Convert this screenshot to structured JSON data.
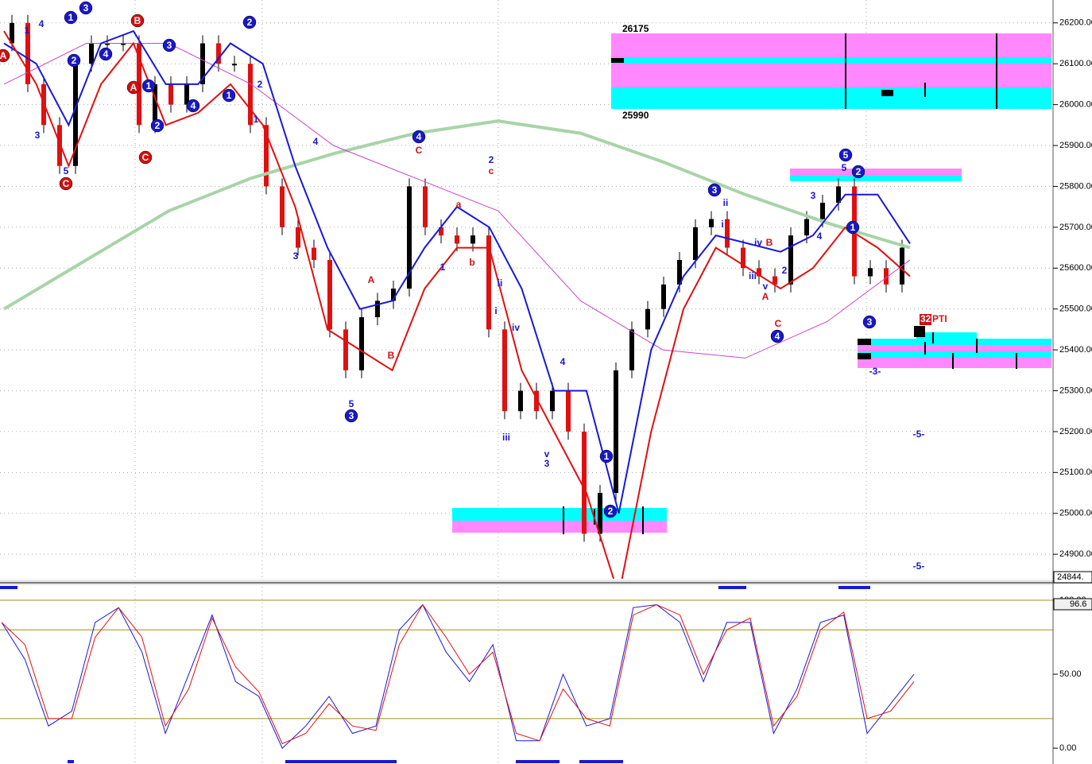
{
  "chart_data": [
    {
      "type": "line",
      "ylim": [
        24840,
        26256
      ],
      "yticks": [
        {
          "value": 24900,
          "label": "24900.00"
        },
        {
          "value": 25000,
          "label": "25000.00"
        },
        {
          "value": 25100,
          "label": "25100.00"
        },
        {
          "value": 25200,
          "label": "25200.00"
        },
        {
          "value": 25300,
          "label": "25300.00"
        },
        {
          "value": 25400,
          "label": "25400.00"
        },
        {
          "value": 25500,
          "label": "25500.00"
        },
        {
          "value": 25600,
          "label": "25600.00"
        },
        {
          "value": 25700,
          "label": "25700.00"
        },
        {
          "value": 25800,
          "label": "25800.00"
        },
        {
          "value": 25900,
          "label": "25900.00"
        },
        {
          "value": 26000,
          "label": "26000.00"
        },
        {
          "value": 26100,
          "label": "26100.00"
        },
        {
          "value": 26200,
          "label": "26200.00"
        }
      ],
      "grid": true,
      "low_label": "24844.",
      "zone_labels": [
        26175,
        25990
      ],
      "pti_count": 32,
      "pti_label": "PTI",
      "series": [
        {
          "style": "bars",
          "color": "#000000",
          "down_color": "#e01010",
          "values": [
            26150,
            26200,
            26050,
            25950,
            25850,
            26100,
            26150,
            26150,
            26150,
            25950,
            26050,
            26000,
            26050,
            26150,
            26100,
            26100,
            25950,
            25800,
            25700,
            25650,
            25620,
            25450,
            25350,
            25480,
            25520,
            25550,
            25800,
            25700,
            25680,
            25660,
            25680,
            25450,
            25250,
            25300,
            25250,
            25300,
            25200,
            24950,
            25050,
            25350,
            25450,
            25500,
            25560,
            25620,
            25700,
            25720,
            25650,
            25600,
            25580,
            25560,
            25680,
            25720,
            25760,
            25800,
            25580,
            25600,
            25560,
            25650
          ]
        },
        {
          "style": "line",
          "color": "#a8d4a8",
          "values": [
            25500,
            25620,
            25740,
            25820,
            25880,
            25930,
            25960,
            25930,
            25860,
            25780,
            25710,
            25650
          ]
        },
        {
          "style": "line",
          "color": "#cc44cc",
          "values": [
            26050,
            26150,
            26150,
            26050,
            25900,
            25820,
            25740,
            25520,
            25400,
            25380,
            25470,
            25620
          ]
        },
        {
          "style": "line",
          "color": "#1818d8",
          "values": [
            26150,
            26100,
            25950,
            26150,
            26180,
            26050,
            26050,
            26150,
            26100,
            25850,
            25650,
            25500,
            25520,
            25650,
            25750,
            25700,
            25550,
            25300,
            25300,
            25000,
            25400,
            25580,
            25680,
            25660,
            25640,
            25680,
            25780,
            25780,
            25660
          ]
        },
        {
          "style": "line",
          "color": "#e01010",
          "values": [
            26180,
            26050,
            25850,
            26050,
            26150,
            25950,
            25980,
            26050,
            25950,
            25750,
            25450,
            25400,
            25350,
            25550,
            25650,
            25650,
            25350,
            25200,
            25050,
            24800,
            25200,
            25500,
            25650,
            25600,
            25550,
            25600,
            25700,
            25650,
            25580
          ]
        }
      ],
      "annotations": [
        "A",
        "1",
        "4",
        "3",
        "5",
        "C",
        "1",
        "3",
        "2",
        "4",
        "B",
        "A",
        "1",
        "2",
        "C",
        "3",
        "4",
        "1",
        "2",
        "2",
        "1",
        "4",
        "3",
        "5",
        "3",
        "A",
        "B",
        "4",
        "C",
        "a",
        "1",
        "b",
        "2",
        "c",
        "ii",
        "i",
        "iv",
        "iii",
        "v",
        "3",
        "4",
        "1",
        "2",
        "3",
        "ii",
        "i",
        "iv",
        "B",
        "iii",
        "v",
        "A",
        "C",
        "4",
        "2",
        "3",
        "4",
        "5",
        "5",
        "2",
        "1",
        "3",
        "-3-",
        "-5-",
        "-5-"
      ]
    },
    {
      "type": "line",
      "ylim": [
        -9.1,
        109.7
      ],
      "yticks": [
        {
          "value": 0,
          "label": "0.00"
        },
        {
          "value": 50,
          "label": "50.00"
        },
        {
          "value": 100,
          "label": "100.00"
        }
      ],
      "ref_lines": [
        20,
        80,
        100
      ],
      "value_label": "96.6",
      "series": [
        {
          "color": "#1818d8",
          "values": [
            85,
            60,
            15,
            25,
            85,
            95,
            65,
            10,
            50,
            90,
            45,
            35,
            0,
            15,
            35,
            10,
            15,
            80,
            97,
            65,
            45,
            70,
            5,
            5,
            50,
            15,
            20,
            95,
            97,
            85,
            45,
            85,
            85,
            10,
            40,
            85,
            90,
            10,
            30,
            50
          ]
        },
        {
          "color": "#e01010",
          "values": [
            85,
            70,
            20,
            20,
            75,
            95,
            75,
            15,
            40,
            88,
            55,
            38,
            3,
            10,
            30,
            15,
            12,
            70,
            97,
            75,
            50,
            65,
            10,
            5,
            40,
            20,
            15,
            90,
            97,
            90,
            50,
            80,
            88,
            15,
            35,
            80,
            92,
            20,
            25,
            45
          ]
        }
      ]
    }
  ]
}
